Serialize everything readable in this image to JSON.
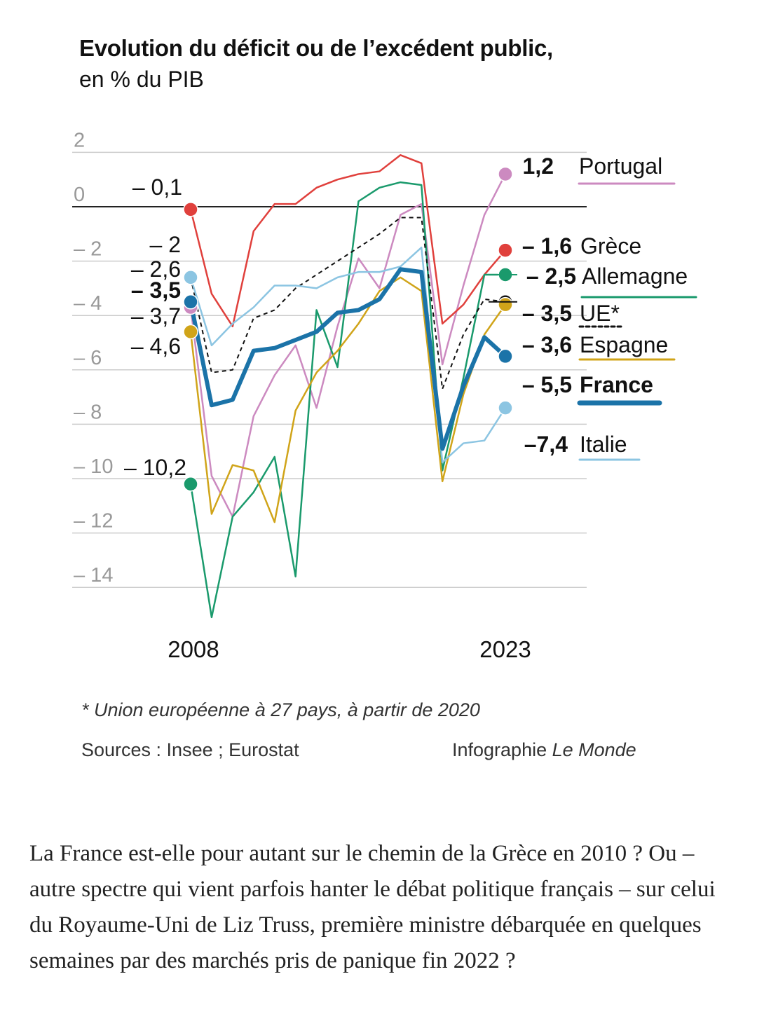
{
  "title": "Evolution du déficit ou de l’excédent public,",
  "subtitle": "en % du PIB",
  "footnote": "* Union européenne à 27 pays, à partir de 2020",
  "sources": "Sources : Insee ; Eurostat",
  "credit_prefix": "Infographie ",
  "credit_name": "Le Monde",
  "article_text": "La France est-elle pour autant sur le chemin de la Grèce en 2010 ? Ou – autre spectre qui vient parfois hanter le débat politique français – sur celui du Royaume-Uni de Liz Truss, première ministre débarquée en quelques semaines par des marchés pris de panique fin 2022 ?",
  "chart_data": {
    "type": "line",
    "ylim": [
      -16,
      2
    ],
    "yticks": [
      2,
      0,
      -2,
      -4,
      -6,
      -8,
      -10,
      -12,
      -14
    ],
    "ytick_labels": [
      "2",
      "0",
      "– 2",
      "– 4",
      "– 6",
      "– 8",
      "– 10",
      "– 12",
      "– 14"
    ],
    "xlim": [
      2008,
      2023
    ],
    "xtick_labels": [
      "2008",
      "2023"
    ],
    "x": [
      2008,
      2009,
      2010,
      2011,
      2012,
      2013,
      2014,
      2015,
      2016,
      2017,
      2018,
      2019,
      2020,
      2021,
      2022,
      2023
    ],
    "series": [
      {
        "name": "Portugal",
        "color": "#cc8ac0",
        "width": 2.5,
        "dash": "",
        "label_start": "",
        "label_end": "1,2",
        "values": [
          -3.7,
          -9.9,
          -11.4,
          -7.7,
          -6.2,
          -5.1,
          -7.4,
          -4.4,
          -1.9,
          -3.0,
          -0.3,
          0.1,
          -5.8,
          -2.9,
          -0.3,
          1.2
        ]
      },
      {
        "name": "Grèce",
        "color": "#e0403c",
        "width": 2.5,
        "dash": "",
        "label_start": "– 0,1",
        "label_end": "– 1,6",
        "values": [
          -0.1,
          -3.2,
          -4.4,
          -0.9,
          0.1,
          0.1,
          0.7,
          1.0,
          1.2,
          1.3,
          1.9,
          1.6,
          -4.3,
          -3.6,
          -2.5,
          -1.6
        ]
      },
      {
        "name": "Allemagne",
        "color": "#1a9a6c",
        "width": 2.5,
        "dash": "",
        "label_start": "– 10,2",
        "label_end": "– 2,5",
        "values": [
          -10.2,
          -15.1,
          -11.4,
          -10.5,
          -9.2,
          -13.6,
          -3.8,
          -5.9,
          0.2,
          0.7,
          0.9,
          0.8,
          -9.7,
          -6.3,
          -2.5,
          -2.5
        ]
      },
      {
        "name": "UE*",
        "color": "#111111",
        "width": 2,
        "dash": "6 5",
        "label_start": "– 2,6",
        "label_end": "– 3,5",
        "values": [
          -2.6,
          -6.1,
          -6.0,
          -4.1,
          -3.8,
          -3.0,
          -2.5,
          -2.0,
          -1.5,
          -1.0,
          -0.4,
          -0.4,
          -6.7,
          -4.7,
          -3.4,
          -3.5
        ]
      },
      {
        "name": "Espagne",
        "color": "#d0a419",
        "width": 2.5,
        "dash": "",
        "label_start": "– 4,6",
        "label_end": "– 3,6",
        "values": [
          -4.6,
          -11.3,
          -9.5,
          -9.7,
          -11.6,
          -7.5,
          -6.1,
          -5.3,
          -4.3,
          -3.1,
          -2.6,
          -3.1,
          -10.1,
          -6.9,
          -4.7,
          -3.6
        ]
      },
      {
        "name": "Italie",
        "color": "#8cc5e2",
        "width": 2.5,
        "dash": "",
        "label_start": "– 2,6",
        "label_end": "–7,4",
        "values": [
          -2.6,
          -5.1,
          -4.3,
          -3.7,
          -2.9,
          -2.9,
          -3.0,
          -2.6,
          -2.4,
          -2.4,
          -2.2,
          -1.5,
          -9.4,
          -8.7,
          -8.6,
          -7.4
        ]
      },
      {
        "name": "France",
        "color": "#1b73a8",
        "width": 6,
        "dash": "",
        "label_start": "– 3,5",
        "label_end": "– 5,5",
        "values": [
          -3.5,
          -7.3,
          -7.1,
          -5.3,
          -5.2,
          -4.9,
          -4.6,
          -3.9,
          -3.8,
          -3.4,
          -2.3,
          -2.4,
          -8.9,
          -6.6,
          -4.8,
          -5.5
        ]
      }
    ],
    "start_labels_extra": [
      {
        "label": "– 2",
        "color": "#111"
      },
      {
        "label": "– 3,7",
        "color": "#111"
      }
    ],
    "legend": [
      {
        "value": "1,2",
        "name": "Portugal",
        "color": "#cc8ac0",
        "bold": false
      },
      {
        "value": "– 1,6",
        "name": "Grèce",
        "color": "#e0403c",
        "bold": false
      },
      {
        "value": "– 2,5",
        "name": "Allemagne",
        "color": "#1a9a6c",
        "bold": false
      },
      {
        "value": "– 3,5",
        "name": "UE*",
        "color": "#111111",
        "bold": false
      },
      {
        "value": "– 3,6",
        "name": "Espagne",
        "color": "#d0a419",
        "bold": false
      },
      {
        "value": "– 5,5",
        "name": "France",
        "color": "#1b73a8",
        "bold": true
      },
      {
        "value": "–7,4",
        "name": "Italie",
        "color": "#8cc5e2",
        "bold": false
      }
    ]
  }
}
